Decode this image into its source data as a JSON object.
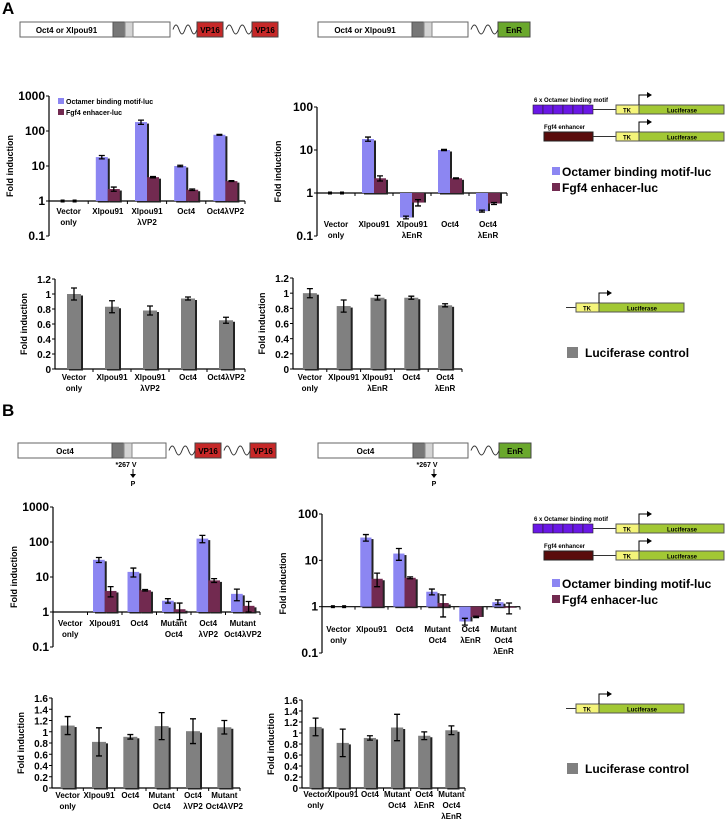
{
  "panels": {
    "a": "A",
    "b": "B"
  },
  "constructs": {
    "a_vp16": {
      "label": "Oct4 or Xlpou91",
      "domains": [
        "VP16",
        "VP16"
      ]
    },
    "a_enr": {
      "label": "Oct4 or Xlpou91",
      "domains": [
        "EnR"
      ]
    },
    "b_vp16": {
      "label": "Oct4",
      "domains": [
        "VP16",
        "VP16"
      ],
      "mutation": "*267 V",
      "mutation_to": "P"
    },
    "b_enr": {
      "label": "Oct4",
      "domains": [
        "EnR"
      ],
      "mutation": "*267 V",
      "mutation_to": "P"
    }
  },
  "reporters": {
    "octamer": "6 x Octamer binding motif",
    "fgf4": "Fgf4 enhancer",
    "tk": "TK",
    "luciferase": "Luciferase"
  },
  "legend": {
    "octamer": "Octamer binding motif-luc",
    "fgf4": "Fgf4 enhacer-luc",
    "control": "Luciferase control"
  },
  "colors": {
    "octamer": "#8c86f2",
    "fgf4": "#722a50",
    "control": "#808080",
    "vp16": "#c62828",
    "enr": "#6aa82c",
    "tk": "#f4f47a",
    "luciferase": "#a2c834",
    "octamer_box": "#6a18e6",
    "fgf4_box": "#5a0c0c"
  },
  "chart_data": [
    {
      "id": "A-VP16-reporter",
      "type": "bar",
      "ylabel": "Fold induction",
      "yscale": "log",
      "ylim": [
        0.1,
        1000
      ],
      "yticks": [
        "0.1",
        "1",
        "10",
        "100",
        "1000"
      ],
      "categories": [
        [
          "Vector",
          "only"
        ],
        [
          "Xlpou91"
        ],
        [
          "Xlpou91",
          "λVP2"
        ],
        [
          "Oct4"
        ],
        [
          "Oct4λVP2"
        ]
      ],
      "series": [
        {
          "name": "Octamer binding motif-luc",
          "values": [
            1,
            18,
            180,
            10,
            78
          ],
          "errors": [
            0,
            2,
            25,
            0.5,
            2
          ]
        },
        {
          "name": "Fgf4 enhacer-luc",
          "values": [
            1,
            2.2,
            4.8,
            2.1,
            3.7
          ],
          "errors": [
            0,
            0.3,
            0.2,
            0.1,
            0.1
          ]
        }
      ],
      "legend": "top-left"
    },
    {
      "id": "A-EnR-reporter",
      "type": "bar",
      "ylabel": "Fold induction",
      "yscale": "log",
      "ylim": [
        0.1,
        100
      ],
      "yticks": [
        "0.1",
        "1",
        "10",
        "100"
      ],
      "categories": [
        [
          "Vector",
          "only"
        ],
        [
          "Xlpou91"
        ],
        [
          "Xlpou91",
          "λEnR"
        ],
        [
          "Oct4"
        ],
        [
          "Oct4",
          "λEnR"
        ]
      ],
      "series": [
        {
          "name": "Octamer binding motif-luc",
          "values": [
            1,
            18,
            0.27,
            10,
            0.38
          ],
          "errors": [
            0,
            2,
            0.02,
            0.3,
            0.02
          ]
        },
        {
          "name": "Fgf4 enhacer-luc",
          "values": [
            1,
            2.2,
            0.6,
            2.2,
            0.57
          ],
          "errors": [
            0,
            0.3,
            0.1,
            0.05,
            0.03
          ]
        }
      ]
    },
    {
      "id": "A-VP16-control",
      "type": "bar",
      "ylabel": "Fold induction",
      "ylim": [
        0,
        1.2
      ],
      "yticks": [
        "0",
        "0.2",
        "0.4",
        "0.6",
        "0.8",
        "1",
        "1.2"
      ],
      "categories": [
        [
          "Vector",
          "only"
        ],
        [
          "Xlpou91"
        ],
        [
          "Xlpou91",
          "λVP2"
        ],
        [
          "Oct4"
        ],
        [
          "Oct4λVP2"
        ]
      ],
      "series": [
        {
          "name": "Luciferase control",
          "values": [
            1.0,
            0.83,
            0.78,
            0.94,
            0.65
          ],
          "errors": [
            0.08,
            0.08,
            0.06,
            0.02,
            0.04
          ]
        }
      ]
    },
    {
      "id": "A-EnR-control",
      "type": "bar",
      "ylabel": "Fold induction",
      "ylim": [
        0,
        1.2
      ],
      "yticks": [
        "0",
        "0.2",
        "0.4",
        "0.6",
        "0.8",
        "1",
        "1.2"
      ],
      "categories": [
        [
          "Vector",
          "only"
        ],
        [
          "Xlpou91"
        ],
        [
          "Xlpou91",
          "λEnR"
        ],
        [
          "Oct4"
        ],
        [
          "Oct4",
          "λEnR"
        ]
      ],
      "series": [
        {
          "name": "Luciferase control",
          "values": [
            1.0,
            0.83,
            0.94,
            0.94,
            0.84
          ],
          "errors": [
            0.06,
            0.08,
            0.03,
            0.02,
            0.02
          ]
        }
      ]
    },
    {
      "id": "B-VP16-reporter",
      "type": "bar",
      "ylabel": "Fold induction",
      "yscale": "log",
      "ylim": [
        0.1,
        1000
      ],
      "yticks": [
        "0.1",
        "1",
        "10",
        "100",
        "1000"
      ],
      "categories": [
        [
          "Vector",
          "only"
        ],
        [
          "Xlpou91"
        ],
        [
          "Oct4"
        ],
        [
          "Mutant",
          "Oct4"
        ],
        [
          "Oct4",
          "λVP2"
        ],
        [
          "Mutant",
          "Oct4λVP2"
        ]
      ],
      "series": [
        {
          "name": "Octamer binding motif-luc",
          "values": [
            1,
            31,
            14,
            2.1,
            125,
            3.3
          ],
          "errors": [
            0,
            5,
            4,
            0.3,
            30,
            1.2
          ]
        },
        {
          "name": "Fgf4 enhacer-luc",
          "values": [
            1,
            4,
            4.2,
            1.2,
            8,
            1.5
          ],
          "errors": [
            0,
            1.3,
            0.2,
            0.6,
            1,
            0.5
          ]
        }
      ]
    },
    {
      "id": "B-EnR-reporter",
      "type": "bar",
      "ylabel": "Fold induction",
      "yscale": "log",
      "ylim": [
        0.1,
        100
      ],
      "yticks": [
        "0.1",
        "1",
        "10",
        "100"
      ],
      "categories": [
        [
          "Vector",
          "only"
        ],
        [
          "Xlpou91"
        ],
        [
          "Oct4"
        ],
        [
          "Mutant",
          "Oct4"
        ],
        [
          "Oct4",
          "λEnR"
        ],
        [
          "Mutant",
          "Oct4",
          "λEnR"
        ]
      ],
      "series": [
        {
          "name": "Octamer binding motif-luc",
          "values": [
            1,
            31,
            14,
            2.1,
            0.48,
            1.25
          ],
          "errors": [
            0,
            5,
            4,
            0.3,
            0.08,
            0.15
          ]
        },
        {
          "name": "Fgf4 enhacer-luc",
          "values": [
            1,
            4,
            4.2,
            1.2,
            0.6,
            0.95
          ],
          "errors": [
            0,
            1.3,
            0.2,
            0.6,
            0.02,
            0.25
          ]
        }
      ]
    },
    {
      "id": "B-VP16-control",
      "type": "bar",
      "ylabel": "Fold induction",
      "ylim": [
        0,
        1.6
      ],
      "yticks": [
        "0",
        "0.2",
        "0.4",
        "0.6",
        "0.8",
        "1",
        "1.2",
        "1.4",
        "1.6"
      ],
      "categories": [
        [
          "Vector",
          "only"
        ],
        [
          "Xlpou91"
        ],
        [
          "Oct4"
        ],
        [
          "Mutant",
          "Oct4"
        ],
        [
          "Oct4",
          "λVP2"
        ],
        [
          "Mutant",
          "Oct4λVP2"
        ]
      ],
      "series": [
        {
          "name": "Luciferase control",
          "values": [
            1.11,
            0.82,
            0.91,
            1.1,
            1.01,
            1.08
          ],
          "errors": [
            0.16,
            0.25,
            0.04,
            0.24,
            0.22,
            0.12
          ]
        }
      ]
    },
    {
      "id": "B-EnR-control",
      "type": "bar",
      "ylabel": "Fold induction",
      "ylim": [
        0,
        1.6
      ],
      "yticks": [
        "0",
        "0.2",
        "0.4",
        "0.6",
        "0.8",
        "1",
        "1.2",
        "1.4",
        "1.6"
      ],
      "categories": [
        [
          "Vector",
          "only"
        ],
        [
          "Xlpou91"
        ],
        [
          "Oct4"
        ],
        [
          "Mutant",
          "Oct4"
        ],
        [
          "Oct4",
          "λEnR"
        ],
        [
          "Mutant",
          "Oct4",
          "λEnR"
        ]
      ],
      "series": [
        {
          "name": "Luciferase control",
          "values": [
            1.11,
            0.82,
            0.91,
            1.1,
            0.95,
            1.05
          ],
          "errors": [
            0.16,
            0.25,
            0.04,
            0.24,
            0.07,
            0.08
          ]
        }
      ]
    }
  ]
}
